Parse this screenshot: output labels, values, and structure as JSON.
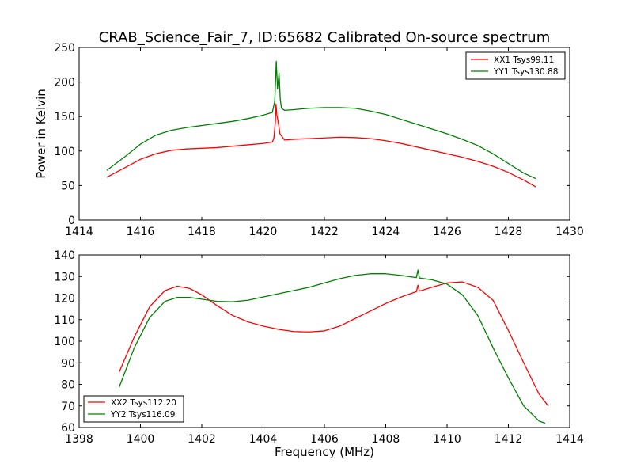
{
  "chart_data": [
    {
      "type": "line",
      "title": "CRAB_Science_Fair_7, ID:65682 Calibrated On-source spectrum",
      "xlabel": "",
      "ylabel": "Power in Kelvin",
      "xlim": [
        1414,
        1430
      ],
      "ylim": [
        0,
        250
      ],
      "xticks": [
        1414,
        1416,
        1418,
        1420,
        1422,
        1424,
        1426,
        1428,
        1430
      ],
      "yticks": [
        0,
        50,
        100,
        150,
        200,
        250
      ],
      "legend_position": "top-right",
      "series": [
        {
          "name": "XX1 Tsys99.11",
          "color": "#ff0000",
          "x": [
            1414.9,
            1415.5,
            1416.0,
            1416.5,
            1417.0,
            1417.5,
            1418.0,
            1418.5,
            1419.0,
            1419.5,
            1420.0,
            1420.3,
            1420.35,
            1420.4,
            1420.42,
            1420.45,
            1420.5,
            1420.55,
            1420.7,
            1421.0,
            1421.5,
            1422.0,
            1422.5,
            1423.0,
            1423.5,
            1424.0,
            1424.5,
            1425.0,
            1425.5,
            1426.0,
            1426.5,
            1427.0,
            1427.5,
            1428.0,
            1428.5,
            1428.9
          ],
          "y": [
            62,
            76,
            88,
            96,
            101,
            103,
            104,
            105,
            107,
            109,
            111,
            113,
            118,
            142,
            168,
            152,
            140,
            125,
            116,
            117,
            118,
            119,
            120,
            119.5,
            118,
            115,
            111,
            106,
            101,
            96,
            91,
            85,
            78,
            69,
            58,
            48
          ]
        },
        {
          "name": "YY1 Tsys130.88",
          "color": "#008000",
          "x": [
            1414.9,
            1415.5,
            1416.0,
            1416.5,
            1417.0,
            1417.5,
            1418.0,
            1418.5,
            1419.0,
            1419.5,
            1420.0,
            1420.3,
            1420.38,
            1420.43,
            1420.47,
            1420.52,
            1420.56,
            1420.6,
            1420.7,
            1421.0,
            1421.5,
            1422.0,
            1422.5,
            1423.0,
            1423.5,
            1424.0,
            1424.5,
            1425.0,
            1425.5,
            1426.0,
            1426.5,
            1427.0,
            1427.5,
            1428.0,
            1428.5,
            1428.9
          ],
          "y": [
            72,
            92,
            110,
            123,
            130,
            134,
            137,
            140,
            143,
            147,
            152,
            156,
            172,
            230,
            190,
            213,
            175,
            162,
            159,
            160,
            162,
            163,
            163,
            162,
            158,
            153,
            146,
            139,
            132,
            125,
            117,
            108,
            96,
            82,
            68,
            60
          ]
        }
      ]
    },
    {
      "type": "line",
      "title": "",
      "xlabel": "Frequency (MHz)",
      "ylabel": "",
      "xlim": [
        1398,
        1414
      ],
      "ylim": [
        60,
        140
      ],
      "xticks": [
        1398,
        1400,
        1402,
        1404,
        1406,
        1408,
        1410,
        1412,
        1414
      ],
      "yticks": [
        60,
        70,
        80,
        90,
        100,
        110,
        120,
        130,
        140
      ],
      "legend_position": "bottom-left",
      "series": [
        {
          "name": "XX2 Tsys112.20",
          "color": "#ff0000",
          "x": [
            1399.3,
            1399.8,
            1400.3,
            1400.8,
            1401.2,
            1401.6,
            1402.0,
            1402.5,
            1403.0,
            1403.5,
            1404.0,
            1404.5,
            1405.0,
            1405.5,
            1406.0,
            1406.5,
            1407.0,
            1407.5,
            1408.0,
            1408.5,
            1409.0,
            1409.05,
            1409.1,
            1409.5,
            1410.0,
            1410.5,
            1411.0,
            1411.5,
            1412.0,
            1412.5,
            1413.0,
            1413.3
          ],
          "y": [
            85.5,
            102,
            116,
            123.5,
            125.5,
            124.5,
            121.5,
            116.5,
            112,
            109,
            107,
            105.5,
            104.5,
            104.3,
            104.8,
            107,
            110.5,
            114,
            117.5,
            120.5,
            123,
            126,
            123.2,
            125,
            127,
            127.5,
            125,
            119,
            105,
            90,
            75.5,
            70
          ]
        },
        {
          "name": "YY2 Tsys116.09",
          "color": "#008000",
          "x": [
            1399.3,
            1399.8,
            1400.3,
            1400.8,
            1401.2,
            1401.6,
            1402.0,
            1402.5,
            1403.0,
            1403.5,
            1404.0,
            1404.5,
            1405.0,
            1405.5,
            1406.0,
            1406.5,
            1407.0,
            1407.5,
            1408.0,
            1408.5,
            1409.0,
            1409.05,
            1409.1,
            1409.5,
            1410.0,
            1410.5,
            1411.0,
            1411.5,
            1412.0,
            1412.5,
            1413.0,
            1413.2
          ],
          "y": [
            78.5,
            97,
            111,
            118.5,
            120.3,
            120.3,
            119.5,
            118.5,
            118.3,
            119,
            120.5,
            122,
            123.5,
            125,
            127,
            129,
            130.5,
            131.3,
            131.3,
            130.5,
            129.5,
            133,
            129.3,
            128.5,
            126.5,
            121.5,
            112,
            97,
            83,
            70,
            63,
            62
          ]
        }
      ]
    }
  ]
}
